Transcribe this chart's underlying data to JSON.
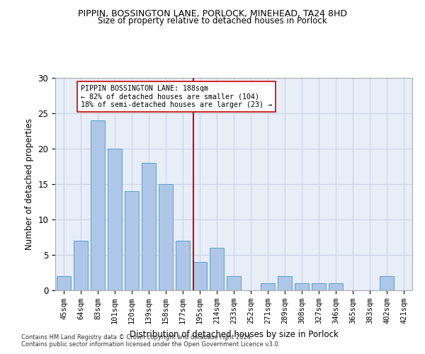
{
  "title1": "PIPPIN, BOSSINGTON LANE, PORLOCK, MINEHEAD, TA24 8HD",
  "title2": "Size of property relative to detached houses in Porlock",
  "xlabel": "Distribution of detached houses by size in Porlock",
  "ylabel": "Number of detached properties",
  "footnote1": "Contains HM Land Registry data © Crown copyright and database right 2024.",
  "footnote2": "Contains public sector information licensed under the Open Government Licence v3.0.",
  "categories": [
    "45sqm",
    "64sqm",
    "83sqm",
    "101sqm",
    "120sqm",
    "139sqm",
    "158sqm",
    "177sqm",
    "195sqm",
    "214sqm",
    "233sqm",
    "252sqm",
    "271sqm",
    "289sqm",
    "308sqm",
    "327sqm",
    "346sqm",
    "365sqm",
    "383sqm",
    "402sqm",
    "421sqm"
  ],
  "values": [
    2,
    7,
    24,
    20,
    14,
    18,
    15,
    7,
    4,
    6,
    2,
    0,
    1,
    2,
    1,
    1,
    1,
    0,
    0,
    2,
    0
  ],
  "bar_color": "#aec6e8",
  "bar_edge_color": "#5a9fd4",
  "property_label": "PIPPIN BOSSINGTON LANE: 188sqm",
  "pct_smaller": 82,
  "n_smaller": 104,
  "pct_larger": 18,
  "n_larger": 23,
  "ylim": [
    0,
    30
  ],
  "background_color": "#ffffff",
  "plot_bg_color": "#e8eef8",
  "grid_color": "#c8d4e8",
  "bar_width": 0.85
}
